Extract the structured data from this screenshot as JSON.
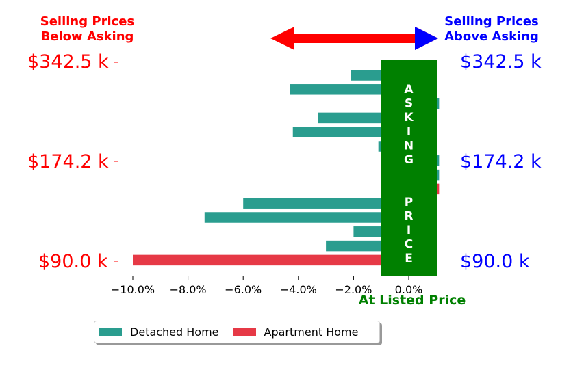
{
  "header_left": [
    "Selling Prices",
    "Below Asking"
  ],
  "header_right": [
    "Selling Prices",
    "Above Asking"
  ],
  "price_labels": [
    "$342.5 k",
    "$174.2 k",
    "$90.0 k"
  ],
  "asking_label": "ASKING  PRICE",
  "xaxis_title": "At Listed Price",
  "colors": {
    "detached": "#2a9d8f",
    "apartment": "#e63946",
    "asking": "#008000",
    "below": "#ff0000",
    "above": "#0000ff",
    "left_price": "#ff0000",
    "right_price": "#0000ff"
  },
  "legend": [
    {
      "label": "Detached Home",
      "color": "#2a9d8f"
    },
    {
      "label": "Apartment Home",
      "color": "#e63946"
    }
  ],
  "chart_data": {
    "type": "bar",
    "orientation": "horizontal",
    "x_ticks": [
      "−10.0%",
      "−8.0%",
      "−6.0%",
      "−4.0%",
      "−2.0%",
      "0.0%"
    ],
    "xlim": [
      -10.5,
      1.15
    ],
    "xlabel": "At Listed Price",
    "series": [
      {
        "name": "Detached Home",
        "color": "#2a9d8f",
        "values": [
          -2.1,
          -4.3,
          1.1,
          -3.3,
          -4.2,
          -1.1,
          1.1,
          1.1,
          null,
          -6.0,
          -7.4,
          -2.0,
          -3.0,
          null
        ]
      },
      {
        "name": "Apartment Home",
        "color": "#e63946",
        "values": [
          null,
          null,
          null,
          null,
          null,
          null,
          null,
          null,
          1.1,
          null,
          null,
          null,
          null,
          -10.0
        ]
      }
    ],
    "y_labels": [
      "$342.5 k",
      "$174.2 k",
      "$90.0 k"
    ],
    "legend_position": "bottom"
  }
}
